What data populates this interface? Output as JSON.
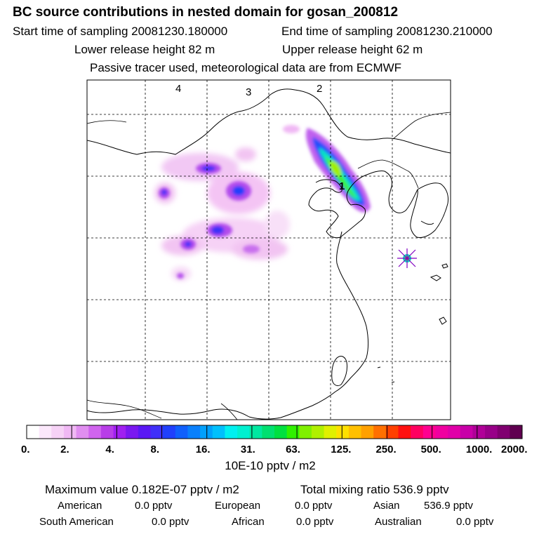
{
  "header": {
    "title": "BC  source contributions in nested domain for gosan_200812",
    "start_time": "Start time of sampling 20081230.180000",
    "end_time": "End time of sampling 20081230.210000",
    "lower_height": "Lower release height   82 m",
    "upper_height": "Upper release height   62 m",
    "note": "Passive tracer used, meteorological data are from ECMWF"
  },
  "map": {
    "grid_day_labels": [
      "4",
      "3",
      "2",
      "1"
    ],
    "receptor_marker": "receptor-star-icon"
  },
  "colorbar": {
    "tick_labels": [
      "0.",
      "2.",
      "4.",
      "8.",
      "16.",
      "31.",
      "63.",
      "125.",
      "250.",
      "500.",
      "1000.",
      "2000."
    ],
    "unit": "10E-10 pptv / m2",
    "colors": [
      "#ffffff",
      "#fbe8fb",
      "#f6d2f6",
      "#f0b8f4",
      "#e08ef0",
      "#d064ee",
      "#b83ee8",
      "#a020f0",
      "#7a18f0",
      "#5a18f4",
      "#4030f8",
      "#2040fc",
      "#1060fc",
      "#0a80fc",
      "#00a0fc",
      "#00c0fc",
      "#00f0f0",
      "#00f0d0",
      "#00e8a0",
      "#00e070",
      "#00e040",
      "#30f000",
      "#80f000",
      "#b0f000",
      "#e0f000",
      "#ffe000",
      "#ffc000",
      "#ffa000",
      "#ff7000",
      "#ff4000",
      "#ff1010",
      "#ff0060",
      "#ff0090",
      "#f000a0",
      "#e000a8",
      "#c800a8",
      "#b00098",
      "#980088",
      "#800070",
      "#600050"
    ]
  },
  "stats": {
    "maximum": "Maximum value  0.182E-07 pptv / m2",
    "total": "Total mixing ratio      536.9 pptv",
    "regions": [
      {
        "name": "American",
        "value": "0.0 pptv"
      },
      {
        "name": "European",
        "value": "0.0 pptv"
      },
      {
        "name": "Asian",
        "value": "536.9 pptv"
      },
      {
        "name": "South American",
        "value": "0.0 pptv"
      },
      {
        "name": "African",
        "value": "0.0 pptv"
      },
      {
        "name": "Australian",
        "value": "0.0 pptv"
      }
    ]
  }
}
